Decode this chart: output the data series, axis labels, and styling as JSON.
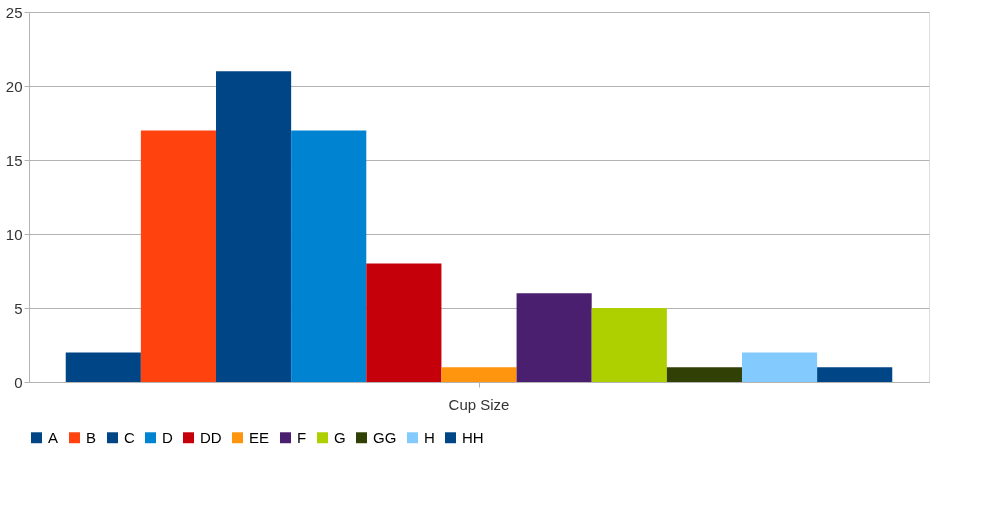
{
  "chart_data": {
    "type": "bar",
    "categories": [
      "Cup Size"
    ],
    "series": [
      {
        "name": "A",
        "color": "#004586",
        "values": [
          2
        ]
      },
      {
        "name": "B",
        "color": "#ff420e",
        "values": [
          17
        ]
      },
      {
        "name": "C",
        "color": "#004586",
        "values": [
          21
        ]
      },
      {
        "name": "D",
        "color": "#0084d1",
        "values": [
          17
        ]
      },
      {
        "name": "DD",
        "color": "#c5000b",
        "values": [
          8
        ]
      },
      {
        "name": "EE",
        "color": "#ff950e",
        "values": [
          1
        ]
      },
      {
        "name": "F",
        "color": "#4b1f6f",
        "values": [
          6
        ]
      },
      {
        "name": "G",
        "color": "#aecf00",
        "values": [
          5
        ]
      },
      {
        "name": "GG",
        "color": "#314004",
        "values": [
          1
        ]
      },
      {
        "name": "H",
        "color": "#83caff",
        "values": [
          2
        ]
      },
      {
        "name": "HH",
        "color": "#004586",
        "values": [
          1
        ]
      }
    ],
    "ylim": [
      0,
      25
    ],
    "yticks": [
      0,
      5,
      10,
      15,
      20,
      25
    ],
    "grid": "y",
    "legend": "bottom"
  }
}
